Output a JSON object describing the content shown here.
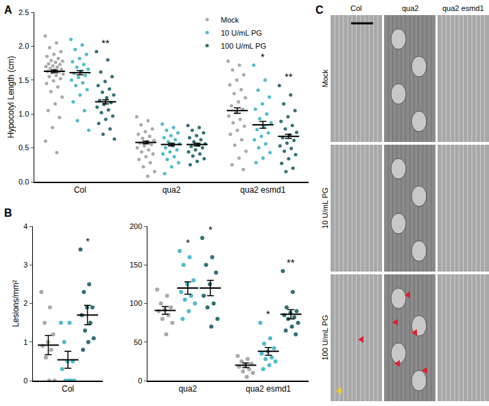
{
  "chart_data": [
    {
      "type": "scatter",
      "label": "A",
      "ylabel": "Hypocotyl Length (cm)",
      "categories": [
        "Col",
        "qua2",
        "qua2 esmd1"
      ],
      "ylim": [
        0,
        2.5
      ],
      "yticks": [
        {
          "value": 0,
          "label": "0.0"
        },
        0.5,
        {
          "value": 1,
          "label": "1.0"
        },
        1.5,
        {
          "value": 2,
          "label": "2.0"
        },
        2.5
      ],
      "legend": "top right",
      "series": [
        {
          "name": "Mock",
          "color": "#a0a0a0",
          "values": [
            [
              2.15,
              2.05,
              1.98,
              1.92,
              1.88,
              1.85,
              1.82,
              1.79,
              1.78,
              1.76,
              1.74,
              1.73,
              1.71,
              1.7,
              1.69,
              1.67,
              1.66,
              1.65,
              1.63,
              1.62,
              1.61,
              1.59,
              1.57,
              1.55,
              1.52,
              1.49,
              1.45,
              1.4,
              1.33,
              1.25,
              1.15,
              1.05,
              0.95,
              0.8,
              0.6,
              0.43
            ],
            [
              0.96,
              0.9,
              0.84,
              0.78,
              0.74,
              0.7,
              0.67,
              0.64,
              0.61,
              0.59,
              0.57,
              0.55,
              0.53,
              0.5,
              0.47,
              0.44,
              0.41,
              0.37,
              0.33,
              0.28,
              0.22,
              0.15,
              0.08
            ],
            [
              1.78,
              1.72,
              1.65,
              1.58,
              1.5,
              1.43,
              1.36,
              1.3,
              1.24,
              1.18,
              1.12,
              1.07,
              1.02,
              0.97,
              0.92,
              0.87,
              0.82,
              0.76,
              0.7,
              0.62,
              0.54,
              0.45,
              0.35,
              0.25,
              0.18
            ]
          ],
          "mean": [
            1.63,
            0.58,
            1.05
          ],
          "sem": [
            0.02,
            0.02,
            0.04
          ],
          "significance": [
            null,
            null,
            null
          ]
        },
        {
          "name": "10 U/mL PG",
          "color": "#3ab4c4",
          "values": [
            [
              2.1,
              2.02,
              1.95,
              1.88,
              1.82,
              1.77,
              1.73,
              1.69,
              1.66,
              1.63,
              1.6,
              1.57,
              1.54,
              1.5,
              1.46,
              1.42,
              1.36,
              1.28,
              1.18,
              1.05,
              0.9,
              0.76
            ],
            [
              0.85,
              0.8,
              0.76,
              0.72,
              0.68,
              0.65,
              0.62,
              0.59,
              0.56,
              0.53,
              0.5,
              0.47,
              0.44,
              0.41,
              0.37,
              0.33,
              0.28,
              0.22,
              0.12
            ],
            [
              1.72,
              1.5,
              1.35,
              1.25,
              1.15,
              1.07,
              1.0,
              0.93,
              0.87,
              0.82,
              0.77,
              0.72,
              0.67,
              0.62,
              0.56,
              0.5,
              0.43,
              0.35,
              0.28
            ]
          ],
          "mean": [
            1.61,
            0.55,
            0.84
          ],
          "sem": [
            0.03,
            0.02,
            0.05
          ],
          "significance": [
            null,
            null,
            "*"
          ]
        },
        {
          "name": "100 U/mL PG",
          "color": "#1b5f64",
          "values": [
            [
              1.92,
              1.8,
              1.62,
              1.55,
              1.48,
              1.42,
              1.37,
              1.32,
              1.28,
              1.24,
              1.2,
              1.17,
              1.14,
              1.1,
              1.06,
              1.02,
              0.97,
              0.92,
              0.86,
              0.78,
              0.7,
              0.63
            ],
            [
              0.83,
              0.8,
              0.76,
              0.72,
              0.68,
              0.65,
              0.62,
              0.59,
              0.56,
              0.54,
              0.52,
              0.5,
              0.47,
              0.44,
              0.41,
              0.38,
              0.34,
              0.3,
              0.25
            ],
            [
              1.42,
              1.28,
              1.15,
              1.05,
              0.96,
              0.89,
              0.83,
              0.78,
              0.73,
              0.69,
              0.65,
              0.61,
              0.57,
              0.53,
              0.49,
              0.45,
              0.4,
              0.34,
              0.27,
              0.2,
              0.15
            ]
          ],
          "mean": [
            1.18,
            0.55,
            0.67
          ],
          "sem": [
            0.03,
            0.02,
            0.03
          ],
          "significance": [
            "**",
            null,
            "**"
          ]
        }
      ]
    },
    {
      "type": "scatter",
      "label": "B",
      "ylabel": "Lesions/mm²",
      "categories": [
        "Col"
      ],
      "ylim": [
        0,
        4
      ],
      "yticks": [
        0,
        1,
        2,
        3,
        4
      ],
      "series": [
        {
          "color": "#a0a0a0",
          "values": [
            [
              2.3,
              1.9,
              1.5,
              1.2,
              1.0,
              0.9,
              0.8,
              0.6,
              0.0,
              0.0
            ]
          ],
          "mean": [
            0.92
          ],
          "sem": [
            0.25
          ],
          "significance": [
            null
          ]
        },
        {
          "color": "#3ab4c4",
          "values": [
            [
              1.5,
              1.5,
              1.0,
              0.5,
              0.5,
              0.3,
              0.0,
              0.0,
              0.0,
              0.0
            ]
          ],
          "mean": [
            0.54
          ],
          "sem": [
            0.22
          ],
          "significance": [
            null
          ]
        },
        {
          "color": "#1b5f64",
          "values": [
            [
              3.4,
              2.5,
              2.3,
              1.9,
              1.9,
              1.7,
              1.5,
              1.3,
              1.1,
              1.0,
              0.8
            ]
          ],
          "mean": [
            1.7
          ],
          "sem": [
            0.25
          ],
          "significance": [
            "*"
          ]
        }
      ]
    },
    {
      "type": "scatter",
      "categories": [
        "qua2",
        "qua2 esmd1"
      ],
      "ylim": [
        0,
        200
      ],
      "yticks": [
        0,
        50,
        100,
        150,
        200
      ],
      "series": [
        {
          "color": "#a0a0a0",
          "values": [
            [
              118,
              110,
              100,
              95,
              92,
              90,
              85,
              80,
              75,
              60
            ],
            [
              32,
              28,
              25,
              22,
              20,
              18,
              15,
              12,
              10,
              5
            ]
          ],
          "mean": [
            91,
            20
          ],
          "sem": [
            5,
            3
          ],
          "significance": [
            null,
            null
          ]
        },
        {
          "color": "#3ab4c4",
          "values": [
            [
              168,
              160,
              150,
              130,
              125,
              115,
              110,
              105,
              100,
              90,
              80
            ],
            [
              75,
              55,
              48,
              42,
              38,
              35,
              30,
              28,
              25,
              20,
              15
            ]
          ],
          "mean": [
            120,
            38
          ],
          "sem": [
            8,
            5
          ],
          "significance": [
            "*",
            "*"
          ]
        },
        {
          "color": "#1b5f64",
          "values": [
            [
              185,
              160,
              150,
              140,
              125,
              110,
              100,
              95,
              80,
              70
            ],
            [
              142,
              115,
              95,
              90,
              88,
              85,
              82,
              80,
              75,
              70,
              65,
              60
            ]
          ],
          "mean": [
            120,
            86
          ],
          "sem": [
            10,
            6
          ],
          "significance": [
            "*",
            "**"
          ]
        }
      ]
    }
  ],
  "image_panel": {
    "label": "C",
    "columns": [
      "Col",
      "qua2",
      "qua2 esmd1"
    ],
    "rows": [
      "Mock",
      "10 U/mL PG",
      "100 U/mL PG"
    ]
  }
}
